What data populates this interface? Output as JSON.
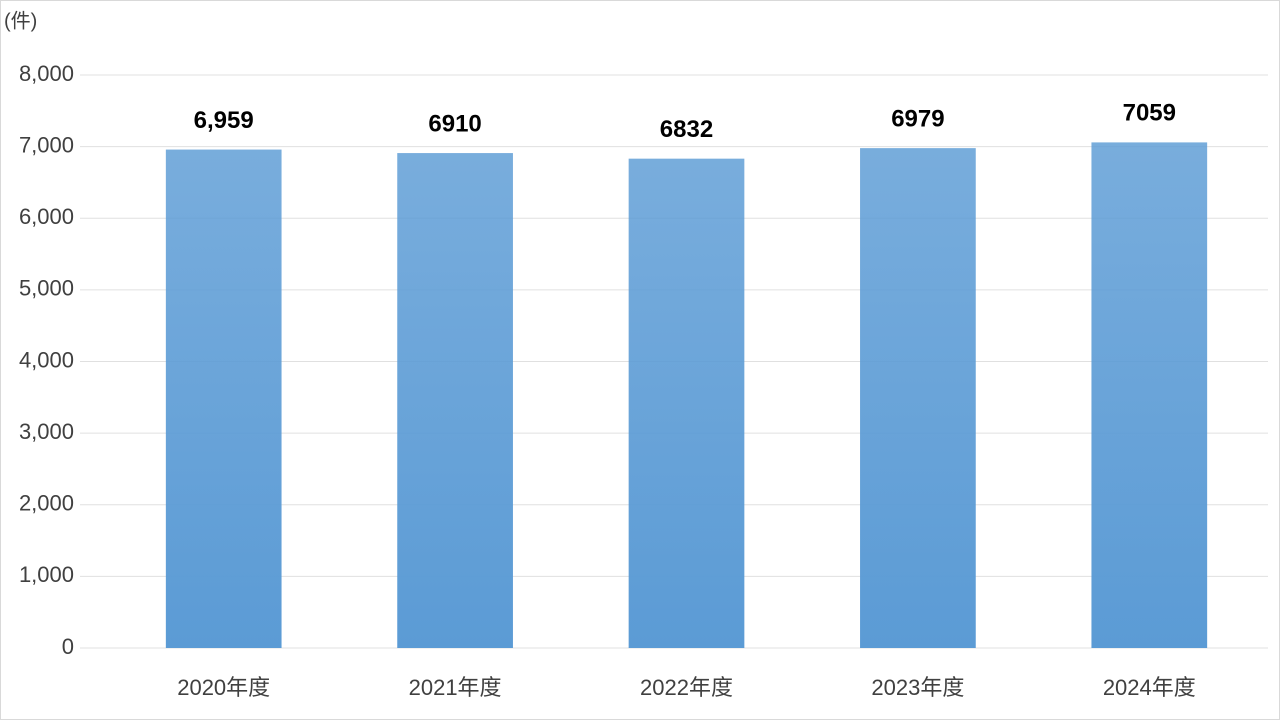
{
  "chart_data": {
    "type": "bar",
    "y_label": "(件)",
    "categories": [
      "2020年度",
      "2021年度",
      "2022年度",
      "2023年度",
      "2024年度"
    ],
    "values": [
      6959,
      6910,
      6832,
      6979,
      7059
    ],
    "value_labels": [
      "6,959",
      "6910",
      "6832",
      "6979",
      "7059"
    ],
    "color": "#5b9bd5",
    "ylim": [
      0,
      8000
    ],
    "yticks": [
      0,
      {
        "value": 1000,
        "label": "1,000"
      },
      {
        "value": 2000,
        "label": "2,000"
      },
      {
        "value": 3000,
        "label": "3,000"
      },
      {
        "value": 4000,
        "label": "4,000"
      },
      {
        "value": 5000,
        "label": "5,000"
      },
      {
        "value": 6000,
        "label": "6,000"
      },
      {
        "value": 7000,
        "label": "7,000"
      },
      {
        "value": 8000,
        "label": "8,000"
      }
    ],
    "grid": true
  }
}
